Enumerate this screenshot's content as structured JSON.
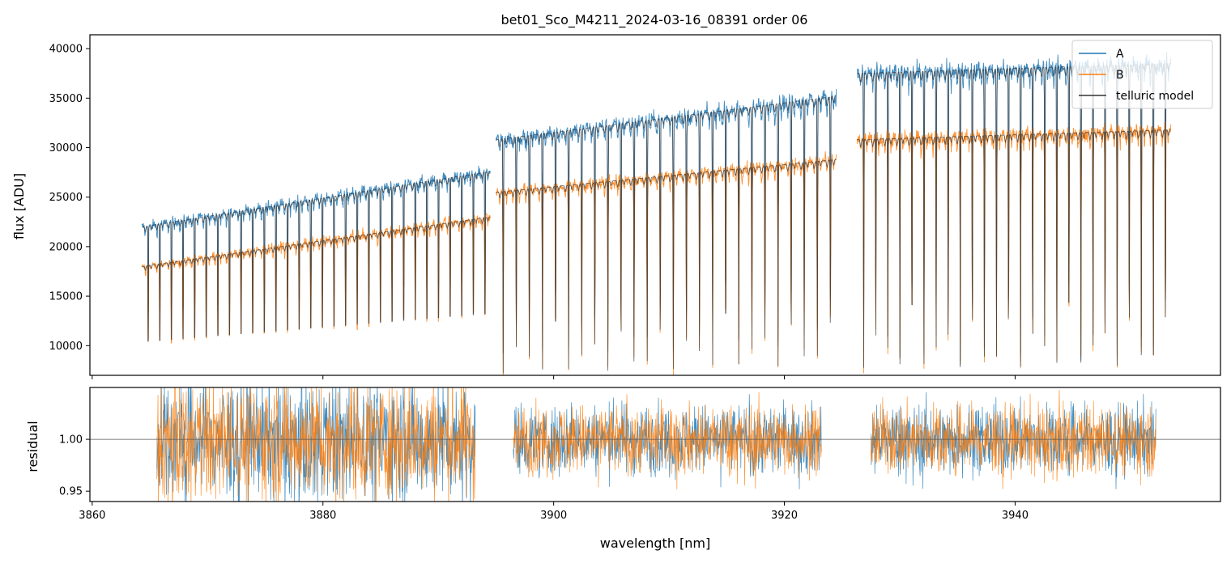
{
  "chart_data": {
    "type": "line",
    "title": "bet01_Sco_M4211_2024-03-16_08391  order 06",
    "xlabel": "wavelength [nm]",
    "xlim": [
      3859.8,
      3957.8
    ],
    "xticks": [
      3860,
      3880,
      3900,
      3920,
      3940
    ],
    "xtick_labels": [
      "3860",
      "3880",
      "3900",
      "3920",
      "3940"
    ],
    "legend_position": "top-right",
    "colors": {
      "A": "#1f77b4",
      "B": "#ff7f0e",
      "model": "#333333"
    },
    "top": {
      "ylabel": "flux [ADU]",
      "ylim": [
        7000,
        41400
      ],
      "yticks": [
        10000,
        15000,
        20000,
        25000,
        30000,
        35000,
        40000
      ],
      "ytick_labels": [
        "10000",
        "15000",
        "20000",
        "25000",
        "30000",
        "35000",
        "40000"
      ],
      "legend": [
        "A",
        "B",
        "telluric model"
      ],
      "series": [
        {
          "name": "A",
          "segments": [
            {
              "x_start": 3864.3,
              "x_end": 3894.5,
              "cont_start": 22000,
              "cont_end": 27600,
              "line_count": 30,
              "depth": 0.6
            },
            {
              "x_start": 3895.0,
              "x_end": 3924.5,
              "cont_start": 30800,
              "cont_end": 35200,
              "line_count": 26,
              "depth": 0.7
            },
            {
              "x_start": 3926.3,
              "x_end": 3953.5,
              "cont_start": 37500,
              "cont_end": 38500,
              "line_count": 26,
              "depth": 0.78
            }
          ]
        },
        {
          "name": "B",
          "segments": [
            {
              "x_start": 3864.3,
              "x_end": 3894.5,
              "cont_start": 18000,
              "cont_end": 23000,
              "line_count": 30,
              "depth": 0.65
            },
            {
              "x_start": 3895.0,
              "x_end": 3924.5,
              "cont_start": 25500,
              "cont_end": 28800,
              "line_count": 26,
              "depth": 0.72
            },
            {
              "x_start": 3926.3,
              "x_end": 3953.5,
              "cont_start": 30800,
              "cont_end": 31800,
              "line_count": 26,
              "depth": 0.75
            }
          ]
        }
      ]
    },
    "bottom": {
      "ylabel": "residual",
      "ylim": [
        0.94,
        1.05
      ],
      "yticks": [
        0.95,
        1.0
      ],
      "ytick_labels": [
        "0.95",
        "1.00"
      ],
      "reference_line": 1.0,
      "segments": [
        [
          3865.6,
          3893.2
        ],
        [
          3896.5,
          3923.2
        ],
        [
          3927.5,
          3952.2
        ]
      ],
      "noise_std": 0.022
    }
  }
}
